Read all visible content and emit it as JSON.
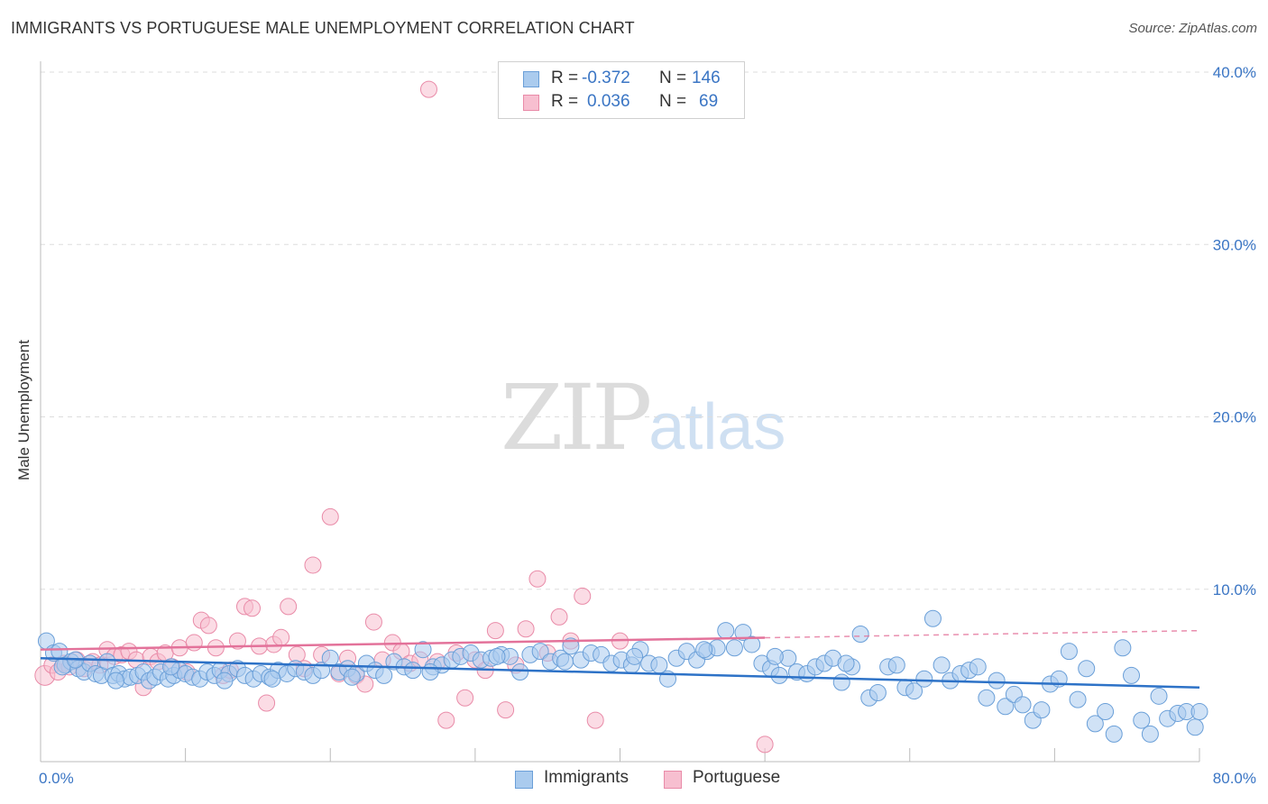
{
  "header": {
    "title": "IMMIGRANTS VS PORTUGUESE MALE UNEMPLOYMENT CORRELATION CHART",
    "source": "Source: ZipAtlas.com"
  },
  "watermark": {
    "zip": "ZIP",
    "atlas": "atlas"
  },
  "legend": {
    "rows": [
      {
        "r_label": "R =",
        "r_value": "-0.372",
        "n_label": "N =",
        "n_value": "146"
      },
      {
        "r_label": "R =",
        "r_value": "0.036",
        "n_label": "N =",
        "n_value": "69"
      }
    ]
  },
  "colors": {
    "blue_fill": "#aacbee",
    "blue_stroke": "#6a9fd8",
    "blue_line": "#2d72c7",
    "pink_fill": "#f7bfd0",
    "pink_stroke": "#e98ba8",
    "pink_line": "#e3729a",
    "tick_text": "#3a75c4",
    "grid": "#dddddd"
  },
  "chart_data": {
    "type": "scatter",
    "title": "IMMIGRANTS VS PORTUGUESE MALE UNEMPLOYMENT CORRELATION CHART",
    "xlabel": "",
    "ylabel": "Male Unemployment",
    "xlim": [
      0,
      80
    ],
    "ylim": [
      0,
      40
    ],
    "x_tick_labels": [
      "0.0%",
      "80.0%"
    ],
    "y_ticks": [
      10,
      20,
      30,
      40
    ],
    "y_tick_labels": [
      "10.0%",
      "20.0%",
      "30.0%",
      "40.0%"
    ],
    "series": [
      {
        "name": "Immigrants",
        "r": -0.372,
        "n": 146,
        "trend": {
          "x0": 0,
          "y0": 6.0,
          "x1": 80,
          "y1": 4.3,
          "dashed_from": null
        },
        "points": [
          [
            0.4,
            7.0
          ],
          [
            0.9,
            6.3
          ],
          [
            1.3,
            6.4
          ],
          [
            1.7,
            5.6
          ],
          [
            2.1,
            5.8
          ],
          [
            2.6,
            5.4
          ],
          [
            3.0,
            5.2
          ],
          [
            3.4,
            5.7
          ],
          [
            3.8,
            5.1
          ],
          [
            4.2,
            5.0
          ],
          [
            4.6,
            5.8
          ],
          [
            5.0,
            5.0
          ],
          [
            5.4,
            5.1
          ],
          [
            5.8,
            4.8
          ],
          [
            6.2,
            4.9
          ],
          [
            6.7,
            5.0
          ],
          [
            7.1,
            5.2
          ],
          [
            7.5,
            4.7
          ],
          [
            7.9,
            4.9
          ],
          [
            8.3,
            5.2
          ],
          [
            8.8,
            4.8
          ],
          [
            9.2,
            5.0
          ],
          [
            9.6,
            5.3
          ],
          [
            10.0,
            5.1
          ],
          [
            10.5,
            4.9
          ],
          [
            11.0,
            4.8
          ],
          [
            11.5,
            5.2
          ],
          [
            12.0,
            5.0
          ],
          [
            12.4,
            5.3
          ],
          [
            13.0,
            5.1
          ],
          [
            13.6,
            5.4
          ],
          [
            14.1,
            5.0
          ],
          [
            14.7,
            4.8
          ],
          [
            15.2,
            5.1
          ],
          [
            15.8,
            4.9
          ],
          [
            16.4,
            5.3
          ],
          [
            17.0,
            5.1
          ],
          [
            17.6,
            5.4
          ],
          [
            18.2,
            5.2
          ],
          [
            18.8,
            5.0
          ],
          [
            19.4,
            5.3
          ],
          [
            20.0,
            6.0
          ],
          [
            20.6,
            5.2
          ],
          [
            21.2,
            5.4
          ],
          [
            21.8,
            5.1
          ],
          [
            22.5,
            5.7
          ],
          [
            23.1,
            5.3
          ],
          [
            23.7,
            5.0
          ],
          [
            24.4,
            5.8
          ],
          [
            25.1,
            5.5
          ],
          [
            25.7,
            5.3
          ],
          [
            26.4,
            6.5
          ],
          [
            27.1,
            5.5
          ],
          [
            27.7,
            5.6
          ],
          [
            28.4,
            5.9
          ],
          [
            29.0,
            6.1
          ],
          [
            29.7,
            6.3
          ],
          [
            30.4,
            5.9
          ],
          [
            31.1,
            6.0
          ],
          [
            31.8,
            6.2
          ],
          [
            32.4,
            6.1
          ],
          [
            33.1,
            5.2
          ],
          [
            33.8,
            6.2
          ],
          [
            34.5,
            6.4
          ],
          [
            35.2,
            5.8
          ],
          [
            35.9,
            6.0
          ],
          [
            36.6,
            6.7
          ],
          [
            37.3,
            5.9
          ],
          [
            38.0,
            6.3
          ],
          [
            38.7,
            6.2
          ],
          [
            39.4,
            5.7
          ],
          [
            40.1,
            5.9
          ],
          [
            40.8,
            5.6
          ],
          [
            41.4,
            6.5
          ],
          [
            42.0,
            5.7
          ],
          [
            42.7,
            5.6
          ],
          [
            43.3,
            4.8
          ],
          [
            43.9,
            6.0
          ],
          [
            44.6,
            6.4
          ],
          [
            45.3,
            5.9
          ],
          [
            46.0,
            6.4
          ],
          [
            46.7,
            6.6
          ],
          [
            47.3,
            7.6
          ],
          [
            47.9,
            6.6
          ],
          [
            48.5,
            7.5
          ],
          [
            49.1,
            6.8
          ],
          [
            49.8,
            5.7
          ],
          [
            50.4,
            5.4
          ],
          [
            51.0,
            5.0
          ],
          [
            51.6,
            6.0
          ],
          [
            52.2,
            5.2
          ],
          [
            52.9,
            5.1
          ],
          [
            53.5,
            5.5
          ],
          [
            54.1,
            5.7
          ],
          [
            54.7,
            6.0
          ],
          [
            55.3,
            4.6
          ],
          [
            56.0,
            5.5
          ],
          [
            56.6,
            7.4
          ],
          [
            57.2,
            3.7
          ],
          [
            57.8,
            4.0
          ],
          [
            58.5,
            5.5
          ],
          [
            59.1,
            5.6
          ],
          [
            59.7,
            4.3
          ],
          [
            60.3,
            4.1
          ],
          [
            61.0,
            4.8
          ],
          [
            61.6,
            8.3
          ],
          [
            62.2,
            5.6
          ],
          [
            62.8,
            4.7
          ],
          [
            63.5,
            5.1
          ],
          [
            64.1,
            5.3
          ],
          [
            64.7,
            5.5
          ],
          [
            65.3,
            3.7
          ],
          [
            66.0,
            4.7
          ],
          [
            66.6,
            3.2
          ],
          [
            67.2,
            3.9
          ],
          [
            67.8,
            3.3
          ],
          [
            68.5,
            2.4
          ],
          [
            69.1,
            3.0
          ],
          [
            69.7,
            4.5
          ],
          [
            70.3,
            4.8
          ],
          [
            71.0,
            6.4
          ],
          [
            71.6,
            3.6
          ],
          [
            72.2,
            5.4
          ],
          [
            72.8,
            2.2
          ],
          [
            73.5,
            2.9
          ],
          [
            74.1,
            1.6
          ],
          [
            74.7,
            6.6
          ],
          [
            75.3,
            5.0
          ],
          [
            76.0,
            2.4
          ],
          [
            76.6,
            1.6
          ],
          [
            77.2,
            3.8
          ],
          [
            77.8,
            2.5
          ],
          [
            78.5,
            2.8
          ],
          [
            79.1,
            2.9
          ],
          [
            79.7,
            2.0
          ],
          [
            80.0,
            2.9
          ],
          [
            1.5,
            5.5
          ],
          [
            2.4,
            5.9
          ],
          [
            5.2,
            4.7
          ],
          [
            9.0,
            5.5
          ],
          [
            12.7,
            4.7
          ],
          [
            16.0,
            4.8
          ],
          [
            21.5,
            4.9
          ],
          [
            26.9,
            5.2
          ],
          [
            31.5,
            6.1
          ],
          [
            36.2,
            5.8
          ],
          [
            41.0,
            6.1
          ],
          [
            45.8,
            6.5
          ],
          [
            50.7,
            6.1
          ],
          [
            55.6,
            5.7
          ]
        ]
      },
      {
        "name": "Portuguese",
        "r": 0.036,
        "n": 69,
        "trend": {
          "x0": 0,
          "y0": 6.5,
          "x1": 80,
          "y1": 7.6,
          "dashed_from": 50
        },
        "points": [
          [
            0.3,
            5.0
          ],
          [
            0.8,
            5.6
          ],
          [
            1.2,
            5.2
          ],
          [
            1.6,
            5.7
          ],
          [
            2.0,
            5.5
          ],
          [
            2.5,
            5.9
          ],
          [
            3.0,
            5.4
          ],
          [
            3.6,
            5.8
          ],
          [
            4.1,
            5.6
          ],
          [
            4.6,
            6.5
          ],
          [
            5.1,
            6.1
          ],
          [
            5.6,
            6.2
          ],
          [
            6.1,
            6.4
          ],
          [
            6.6,
            5.9
          ],
          [
            7.1,
            4.3
          ],
          [
            7.6,
            6.1
          ],
          [
            8.1,
            5.8
          ],
          [
            8.6,
            6.3
          ],
          [
            9.1,
            5.5
          ],
          [
            9.6,
            6.6
          ],
          [
            10.1,
            5.2
          ],
          [
            10.6,
            6.9
          ],
          [
            11.1,
            8.2
          ],
          [
            11.6,
            7.9
          ],
          [
            12.1,
            6.6
          ],
          [
            12.6,
            5.0
          ],
          [
            13.1,
            5.3
          ],
          [
            13.6,
            7.0
          ],
          [
            14.1,
            9.0
          ],
          [
            14.6,
            8.9
          ],
          [
            15.1,
            6.7
          ],
          [
            15.6,
            3.4
          ],
          [
            16.1,
            6.8
          ],
          [
            16.6,
            7.2
          ],
          [
            17.1,
            9.0
          ],
          [
            17.7,
            6.2
          ],
          [
            18.2,
            5.4
          ],
          [
            18.8,
            11.4
          ],
          [
            19.4,
            6.2
          ],
          [
            20.0,
            14.2
          ],
          [
            20.6,
            5.1
          ],
          [
            21.2,
            6.0
          ],
          [
            21.8,
            5.0
          ],
          [
            22.4,
            4.5
          ],
          [
            23.0,
            8.1
          ],
          [
            23.6,
            5.9
          ],
          [
            24.3,
            6.9
          ],
          [
            24.9,
            6.4
          ],
          [
            25.5,
            5.7
          ],
          [
            26.2,
            5.9
          ],
          [
            26.8,
            39.0
          ],
          [
            27.4,
            5.8
          ],
          [
            28.0,
            2.4
          ],
          [
            28.7,
            6.3
          ],
          [
            29.3,
            3.7
          ],
          [
            30.0,
            5.9
          ],
          [
            30.7,
            5.3
          ],
          [
            31.4,
            7.6
          ],
          [
            32.1,
            3.0
          ],
          [
            32.8,
            5.6
          ],
          [
            33.5,
            7.7
          ],
          [
            34.3,
            10.6
          ],
          [
            35.0,
            6.3
          ],
          [
            35.8,
            8.4
          ],
          [
            36.6,
            7.0
          ],
          [
            37.4,
            9.6
          ],
          [
            38.3,
            2.4
          ],
          [
            40.0,
            7.0
          ],
          [
            50.0,
            1.0
          ]
        ]
      }
    ]
  },
  "bottom_legend": [
    {
      "label": "Immigrants"
    },
    {
      "label": "Portuguese"
    }
  ]
}
